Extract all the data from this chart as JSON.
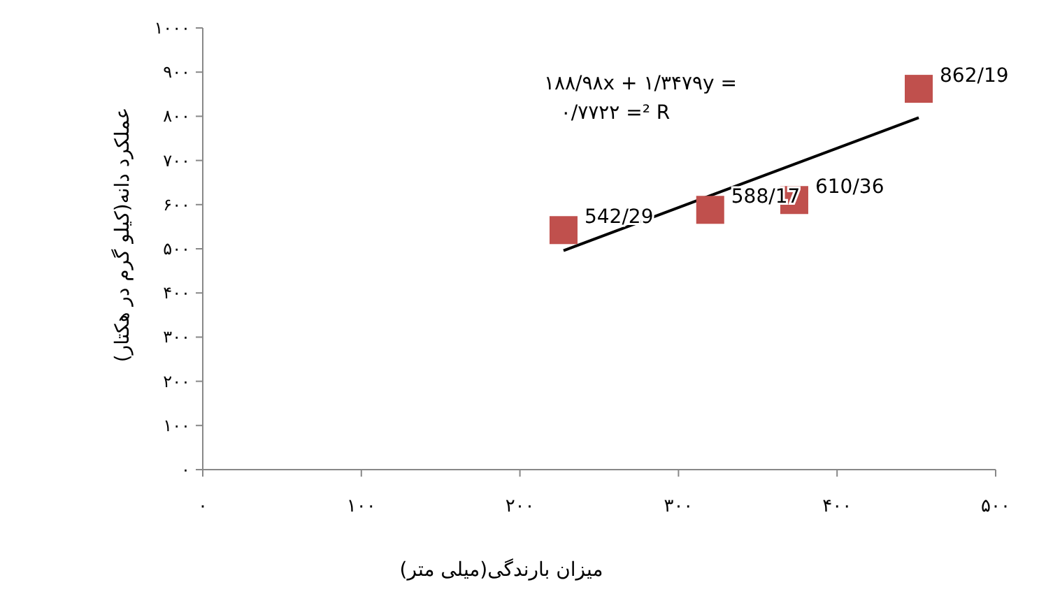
{
  "chart_data": {
    "type": "scatter",
    "xlabel": "میزان بارندگی(میلی متر)",
    "ylabel": "عملکرد دانه(کیلو گرم در هکتار)",
    "xlim": [
      0,
      500
    ],
    "ylim": [
      0,
      1000
    ],
    "xticks": [
      {
        "value": 0,
        "label": "۰"
      },
      {
        "value": 100,
        "label": "۱۰۰"
      },
      {
        "value": 200,
        "label": "۲۰۰"
      },
      {
        "value": 300,
        "label": "۳۰۰"
      },
      {
        "value": 400,
        "label": "۴۰۰"
      },
      {
        "value": 500,
        "label": "۵۰۰"
      }
    ],
    "yticks": [
      {
        "value": 0,
        "label": "۰"
      },
      {
        "value": 100,
        "label": "۱۰۰"
      },
      {
        "value": 200,
        "label": "۲۰۰"
      },
      {
        "value": 300,
        "label": "۳۰۰"
      },
      {
        "value": 400,
        "label": "۴۰۰"
      },
      {
        "value": 500,
        "label": "۵۰۰"
      },
      {
        "value": 600,
        "label": "۶۰۰"
      },
      {
        "value": 700,
        "label": "۷۰۰"
      },
      {
        "value": 800,
        "label": "۸۰۰"
      },
      {
        "value": 900,
        "label": "۹۰۰"
      },
      {
        "value": 1000,
        "label": "۱۰۰۰"
      }
    ],
    "series": [
      {
        "color": "#c0504d",
        "marker": "square",
        "x": [
          227.5,
          320,
          373,
          451.5
        ],
        "values": [
          542.29,
          588.17,
          610.36,
          862.19
        ],
        "value_labels": [
          "542/29",
          "588/17",
          "610/36",
          "862/19"
        ]
      },
      {
        "type": "line",
        "color": "#000000",
        "marker": "none",
        "line_style": "solid",
        "x": [
          227.5,
          451.5
        ],
        "values": [
          496,
          797
        ]
      }
    ],
    "annotations": [
      "۱۸۸/۹۸x + ۱/۳۴۷۹y =",
      "۰/۷۷۲۲ =² R"
    ],
    "grid": false
  }
}
